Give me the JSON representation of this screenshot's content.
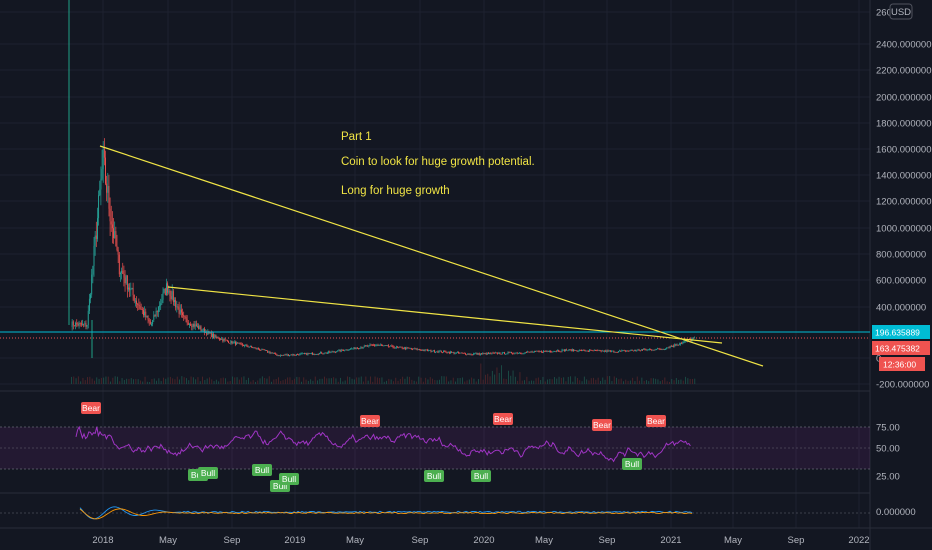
{
  "currency_label": "USD",
  "price_axis_labels": [
    "260",
    "2400.000000",
    "2200.000000",
    "2000.000000",
    "1800.000000",
    "1600.000000",
    "1400.000000",
    "1200.000000",
    "1000.000000",
    "800.000000",
    "600.000000",
    "400.000000",
    "0.",
    "-200.000000"
  ],
  "price_tags": [
    {
      "label": "196.635889",
      "color": "#00bcd4"
    },
    {
      "label": "163.475382",
      "color": "#ef5350"
    },
    {
      "label": "12:36:00",
      "color": "#ef5350"
    }
  ],
  "rsi_axis_labels": [
    "75.00",
    "50.00",
    "25.00"
  ],
  "macd_axis_labels": [
    "0.000000"
  ],
  "time_axis_labels": [
    "2018",
    "May",
    "Sep",
    "2019",
    "May",
    "Sep",
    "2020",
    "May",
    "Sep",
    "2021",
    "May",
    "Sep",
    "2022"
  ],
  "annotations": [
    "Part 1",
    "Coin to look for huge growth potential.",
    "Long for huge growth"
  ],
  "colors": {
    "bg": "#131722",
    "yellow_line": "#f0e445",
    "rsi": "#9c27b0",
    "bull": "#4caf50",
    "bear": "#ef5350",
    "cyan": "#00bcd4"
  },
  "chart_data": {
    "type": "candlestick",
    "price_axis": {
      "ylim": [
        -200,
        2600
      ]
    },
    "price_series_approx": [
      {
        "x": "2017-11",
        "y": 260
      },
      {
        "x": "2017-12",
        "y": 250
      },
      {
        "x": "2018-01",
        "y": 1500
      },
      {
        "x": "2018-01-15",
        "y": 1100
      },
      {
        "x": "2018-02",
        "y": 700
      },
      {
        "x": "2018-03",
        "y": 450
      },
      {
        "x": "2018-04",
        "y": 250
      },
      {
        "x": "2018-05",
        "y": 550
      },
      {
        "x": "2018-06",
        "y": 300
      },
      {
        "x": "2018-07",
        "y": 230
      },
      {
        "x": "2018-08",
        "y": 160
      },
      {
        "x": "2018-09",
        "y": 120
      },
      {
        "x": "2018-10",
        "y": 90
      },
      {
        "x": "2018-11",
        "y": 60
      },
      {
        "x": "2018-12",
        "y": 20
      },
      {
        "x": "2019-03",
        "y": 40
      },
      {
        "x": "2019-06",
        "y": 100
      },
      {
        "x": "2019-09",
        "y": 60
      },
      {
        "x": "2019-12",
        "y": 30
      },
      {
        "x": "2020-03",
        "y": 40
      },
      {
        "x": "2020-06",
        "y": 60
      },
      {
        "x": "2020-09",
        "y": 50
      },
      {
        "x": "2020-12",
        "y": 70
      },
      {
        "x": "2021-02",
        "y": 150
      }
    ],
    "rsi": {
      "levels": [
        75,
        50,
        25
      ]
    },
    "trendlines": [
      "upper descending",
      "lower descending"
    ],
    "signals": [
      {
        "label": "Bear",
        "x": "2018-01"
      },
      {
        "label": "Bull",
        "x": "2018-07"
      },
      {
        "label": "Bull",
        "x": "2018-07"
      },
      {
        "label": "Bull",
        "x": "2018-10"
      },
      {
        "label": "Bull",
        "x": "2018-11"
      },
      {
        "label": "Bull",
        "x": "2018-11"
      },
      {
        "label": "Bear",
        "x": "2019-06"
      },
      {
        "label": "Bull",
        "x": "2019-11"
      },
      {
        "label": "Bull",
        "x": "2020-01"
      },
      {
        "label": "Bear",
        "x": "2020-02"
      },
      {
        "label": "Bear",
        "x": "2020-10"
      },
      {
        "label": "Bull",
        "x": "2020-12"
      },
      {
        "label": "Bear",
        "x": "2021-01"
      }
    ]
  }
}
